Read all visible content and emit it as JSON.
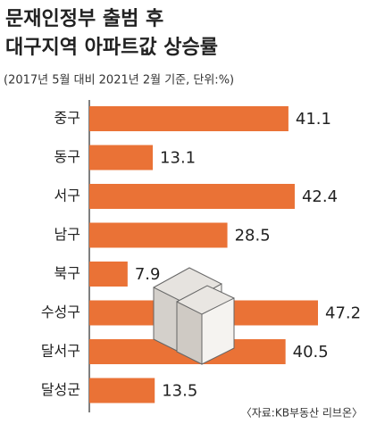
{
  "chart_data": {
    "type": "bar",
    "orientation": "horizontal",
    "title_lines": [
      "문재인정부 출범 후",
      "대구지역 아파트값 상승률"
    ],
    "subtitle": "(2017년 5월 대비 2021년 2월 기준, 단위:%)",
    "categories": [
      "중구",
      "동구",
      "서구",
      "남구",
      "북구",
      "수성구",
      "달서구",
      "달성군"
    ],
    "values": [
      41.1,
      13.1,
      42.4,
      28.5,
      7.9,
      47.2,
      40.5,
      13.5
    ],
    "color": "#ea7236",
    "source": "〈자료:KB부동산 리브온〉"
  }
}
